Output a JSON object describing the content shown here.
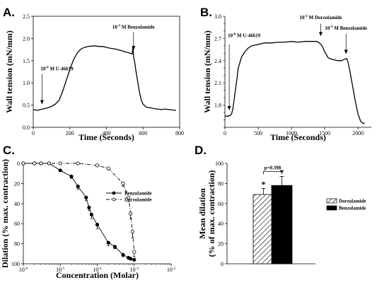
{
  "panels": {
    "a": {
      "label": "A."
    },
    "b": {
      "label": "B."
    },
    "c": {
      "label": "C."
    },
    "d": {
      "label": "D."
    }
  },
  "chart_data": [
    {
      "panel": "A",
      "type": "line",
      "xlabel": "Time (Seconds)",
      "ylabel": "Wall tension (mN/mm)",
      "xlim": [
        0,
        800
      ],
      "ylim": [
        0.0,
        2.5
      ],
      "xticks": [
        0,
        200,
        400,
        600,
        800
      ],
      "yticks": [
        0.0,
        0.5,
        1.0,
        1.5,
        2.0,
        2.5
      ],
      "tick_format": {
        "y": 1
      },
      "series": [
        {
          "x": [
            0,
            20,
            40,
            60,
            80,
            100,
            120,
            140,
            160,
            180,
            200,
            220,
            240,
            260,
            280,
            300,
            320,
            340,
            360,
            380,
            400,
            420,
            440,
            460,
            480,
            500,
            520,
            540,
            545,
            548,
            550,
            555,
            560,
            570,
            580,
            590,
            600,
            620,
            640,
            660,
            680,
            700,
            720,
            740,
            760,
            780
          ],
          "y": [
            0.4,
            0.38,
            0.4,
            0.42,
            0.44,
            0.47,
            0.52,
            0.6,
            0.8,
            1.05,
            1.3,
            1.52,
            1.67,
            1.76,
            1.8,
            1.82,
            1.83,
            1.83,
            1.82,
            1.82,
            1.8,
            1.78,
            1.77,
            1.75,
            1.73,
            1.7,
            1.68,
            1.65,
            1.8,
            1.6,
            1.55,
            1.45,
            1.3,
            1.05,
            0.8,
            0.62,
            0.52,
            0.45,
            0.44,
            0.42,
            0.41,
            0.4,
            0.41,
            0.4,
            0.39,
            0.38
          ]
        }
      ],
      "annotations": [
        {
          "text": "10-6 M U-46619",
          "base": "10",
          "exp": "-6",
          "rest": " M U-46619",
          "x": 48,
          "y": 0.5,
          "text_y": 1.28,
          "arrow_top": 1.2
        },
        {
          "text": "10-3 M Benzolamide",
          "base": "10",
          "exp": "-3",
          "rest": " M Benzolamide",
          "x": 548,
          "y": 1.72,
          "text_y": 2.22,
          "arrow_top": 2.14
        }
      ]
    },
    {
      "panel": "B",
      "type": "line",
      "xlabel": "Time (Seconds)",
      "ylabel": "Wall tension (mN/mm)",
      "xlim": [
        0,
        2200
      ],
      "ylim": [
        1.5,
        3.0
      ],
      "xticks": [
        0,
        500,
        1000,
        1500,
        2000
      ],
      "yticks": [
        1.5,
        1.6,
        1.7,
        1.8,
        1.9,
        2.0,
        2.1,
        2.2,
        2.3,
        2.4,
        2.5,
        2.6,
        2.7,
        2.8,
        2.9,
        3.0
      ],
      "ytick_labels": [
        "",
        "",
        "",
        "1.8",
        "",
        "",
        "2.1",
        "",
        "",
        "2.4",
        "",
        "",
        "2.7",
        "",
        "",
        "3.0"
      ],
      "series": [
        {
          "x": [
            0,
            40,
            80,
            100,
            120,
            150,
            180,
            200,
            250,
            300,
            350,
            400,
            500,
            600,
            700,
            800,
            900,
            1000,
            1100,
            1200,
            1300,
            1380,
            1420,
            1460,
            1500,
            1550,
            1600,
            1650,
            1700,
            1750,
            1800,
            1830,
            1850,
            1880,
            1920,
            1960,
            2000,
            2040,
            2080,
            2100
          ],
          "y": [
            1.65,
            1.65,
            1.66,
            1.68,
            1.75,
            1.95,
            2.15,
            2.3,
            2.45,
            2.52,
            2.57,
            2.6,
            2.62,
            2.64,
            2.64,
            2.65,
            2.65,
            2.66,
            2.65,
            2.66,
            2.66,
            2.66,
            2.64,
            2.6,
            2.52,
            2.44,
            2.42,
            2.41,
            2.4,
            2.4,
            2.42,
            2.43,
            2.38,
            2.25,
            2.05,
            1.85,
            1.68,
            1.58,
            1.55,
            1.56
          ]
        }
      ],
      "annotations": [
        {
          "text": "10-6 M U-46619",
          "base": "10",
          "exp": "-6",
          "rest": " M U-46619",
          "x": 65,
          "y": 1.72,
          "text_y": 2.72,
          "arrow_top": 2.62
        },
        {
          "text": "10-3 M Dorzolamide",
          "base": "10",
          "exp": "-3",
          "rest": " M Dorzolamide",
          "x": 1440,
          "y": 2.72,
          "text_y": 2.96,
          "arrow_top": 2.9
        },
        {
          "text": "10-3 M Benzolamide",
          "base": "10",
          "exp": "-3",
          "rest": " M Benzolamide",
          "x": 1820,
          "y": 2.48,
          "text_y": 2.82,
          "arrow_top": 2.76
        }
      ]
    },
    {
      "panel": "C",
      "type": "line",
      "xlabel": "Concentration (Molar)",
      "ylabel": "Dilation (% max. contraction)",
      "xscale": "log",
      "xlim": [
        1e-06,
        0.01
      ],
      "ylim": [
        100,
        0
      ],
      "y_inverted": true,
      "xtick_exps": [
        -6,
        -5,
        -4,
        -3,
        -2
      ],
      "yticks": [
        0,
        20,
        40,
        60,
        80,
        100
      ],
      "legend_position": "right",
      "series": [
        {
          "name": "Benzolamide",
          "marker": "filled-circle",
          "line": "solid",
          "x": [
            1e-06,
            2e-06,
            3e-06,
            5e-06,
            1e-05,
            2e-05,
            3e-05,
            5e-05,
            6e-05,
            7e-05,
            0.0001,
            0.0002,
            0.0003,
            0.0005,
            0.0007,
            0.0008,
            0.001
          ],
          "y": [
            0,
            0,
            0,
            0,
            7,
            13,
            23,
            34,
            44,
            51,
            61,
            79,
            83,
            91,
            94,
            95,
            96
          ],
          "err": [
            0,
            0,
            0,
            0,
            1,
            2,
            3,
            3,
            3,
            4,
            4,
            3,
            2,
            2,
            1,
            1,
            1
          ]
        },
        {
          "name": "Dorzolamide",
          "marker": "open-circle",
          "line": "dashed",
          "x": [
            1e-06,
            2e-06,
            3e-06,
            5e-06,
            1e-05,
            3e-05,
            0.0001,
            0.0002,
            0.0005,
            0.0007,
            0.0008,
            0.0009,
            0.001
          ],
          "y": [
            0,
            0,
            0,
            0,
            0,
            0,
            2,
            5,
            20,
            34,
            50,
            68,
            88
          ],
          "err": [
            0,
            0,
            0,
            0,
            0,
            0,
            1,
            1,
            3,
            4,
            5,
            6,
            5
          ]
        }
      ]
    },
    {
      "panel": "D",
      "type": "bar",
      "ylabel": "Mean dilation (% of max. contraction)",
      "ylim": [
        0,
        100
      ],
      "yticks": [
        0,
        20,
        40,
        60,
        80,
        100
      ],
      "categories": [
        "Dorzolamide",
        "Benzolamide"
      ],
      "values": [
        69,
        78
      ],
      "err": [
        6,
        9
      ],
      "patterns": [
        "hatch",
        "solid"
      ],
      "significance": [
        "*",
        "*"
      ],
      "comparison": {
        "text": "p=0.398",
        "y": 92
      },
      "legend_position": "right"
    }
  ]
}
